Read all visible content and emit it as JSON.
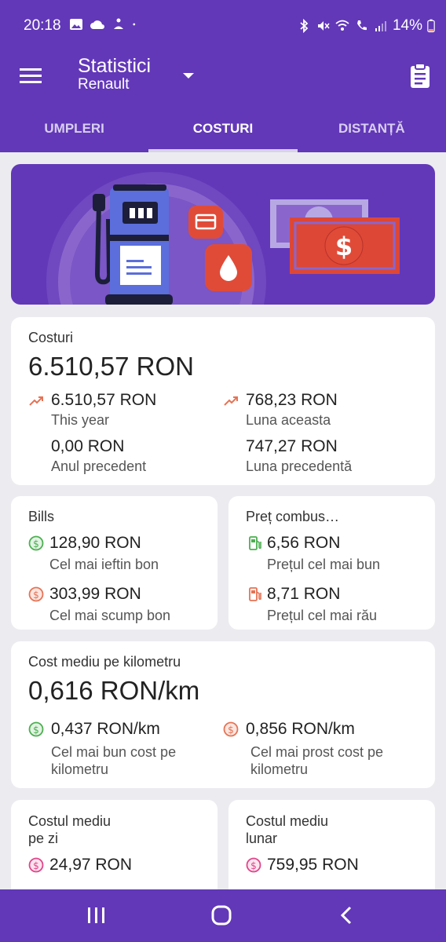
{
  "status": {
    "time": "20:18",
    "battery": "14%"
  },
  "appbar": {
    "title": "Statistici",
    "subtitle": "Renault"
  },
  "tabs": [
    "UMPLERI",
    "COSTURI",
    "DISTANȚĂ"
  ],
  "costs": {
    "label": "Costuri",
    "total": "6.510,57 RON",
    "this_year_value": "6.510,57 RON",
    "this_year_label": "This year",
    "this_month_value": "768,23 RON",
    "this_month_label": "Luna aceasta",
    "prev_year_value": "0,00 RON",
    "prev_year_label": "Anul precedent",
    "prev_month_value": "747,27 RON",
    "prev_month_label": "Luna precedentă"
  },
  "bills": {
    "label": "Bills",
    "cheapest_value": "128,90 RON",
    "cheapest_label": "Cel mai ieftin bon",
    "priciest_value": "303,99 RON",
    "priciest_label": "Cel mai scump bon"
  },
  "fuel_price": {
    "label": "Preț combus…",
    "best_value": "6,56 RON",
    "best_label": "Prețul cel mai bun",
    "worst_value": "8,71 RON",
    "worst_label": "Prețul cel mai rău"
  },
  "cost_per_km": {
    "label": "Cost mediu pe kilometru",
    "value": "0,616 RON/km",
    "best_value": "0,437 RON/km",
    "best_label_line1": "Cel mai bun cost pe",
    "best_label_line2": "kilometru",
    "worst_value": "0,856 RON/km",
    "worst_label_line1": "Cel mai prost cost pe",
    "worst_label_line2": "kilometru"
  },
  "daily": {
    "label_line1": "Costul mediu",
    "label_line2": "pe zi",
    "value": "24,97 RON"
  },
  "monthly": {
    "label_line1": "Costul mediu",
    "label_line2": "lunar",
    "value": "759,95 RON"
  },
  "colors": {
    "primary": "#6238B8",
    "good": "#4CAF50",
    "bad": "#E57355",
    "pink": "#E0458A",
    "trend": "#E57355"
  }
}
